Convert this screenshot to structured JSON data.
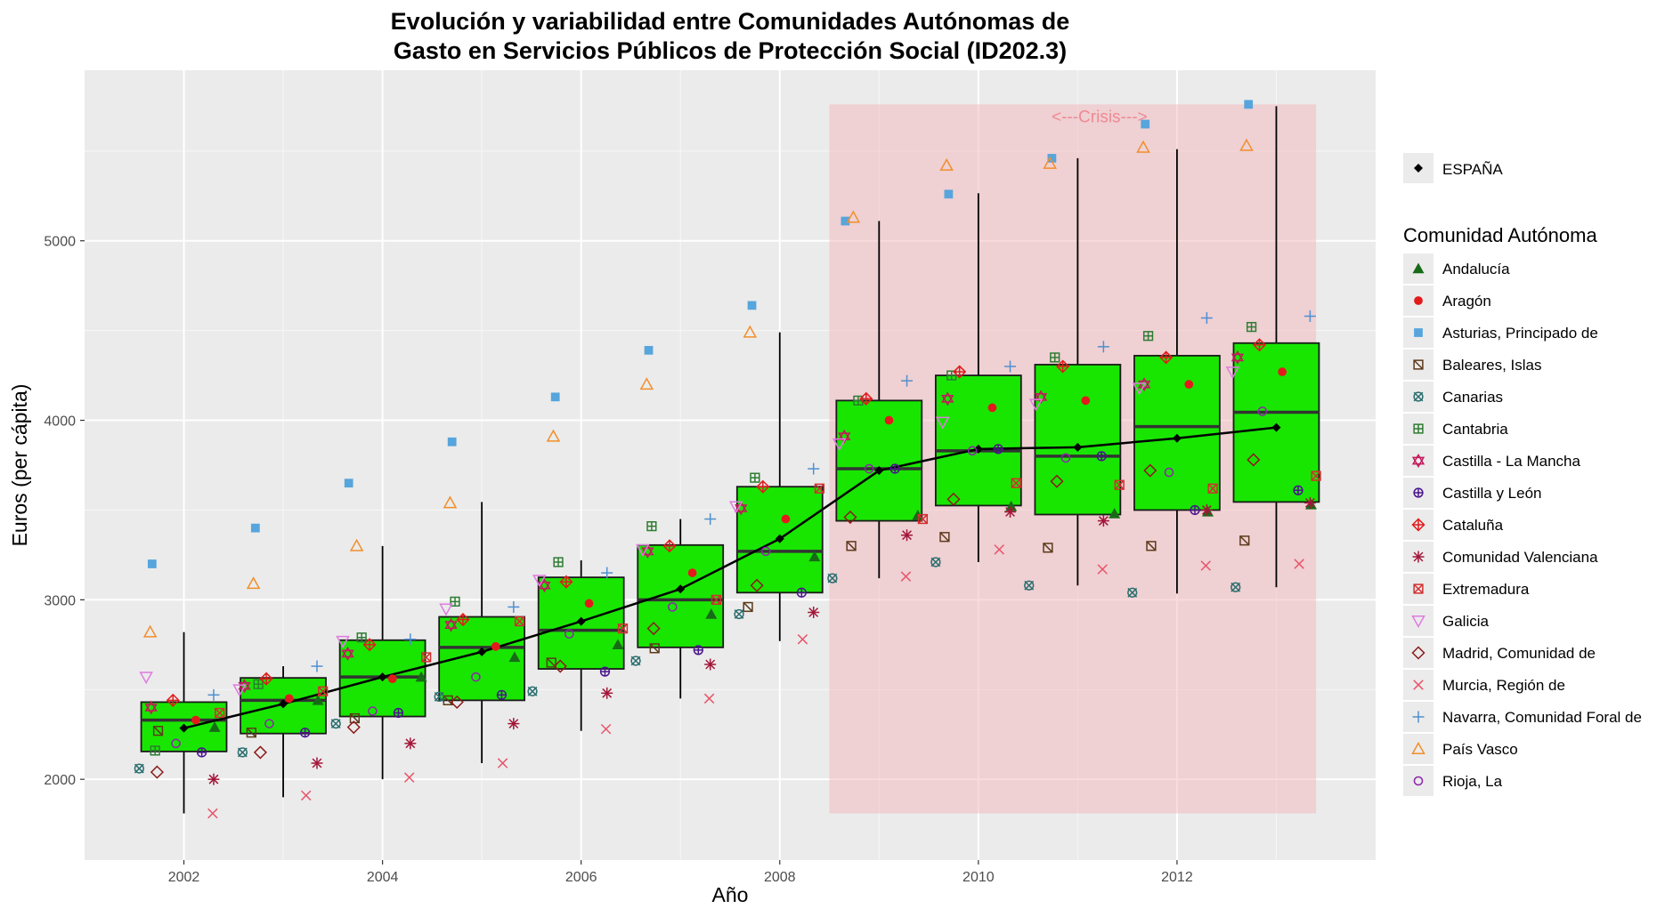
{
  "chart_data": {
    "type": "box",
    "title_lines": [
      "Evolución y variabilidad entre Comunidades Autónomas de",
      "Gasto en Servicios Públicos de Protección Social (ID202.3)"
    ],
    "xlabel": "Año",
    "ylabel": "Euros (per cápita)",
    "xlim": [
      2001,
      2014
    ],
    "ylim": [
      1550,
      5950
    ],
    "x_ticks": [
      2002,
      2004,
      2006,
      2008,
      2010,
      2012
    ],
    "y_ticks": [
      2000,
      3000,
      4000,
      5000
    ],
    "grid": true,
    "crisis_region": {
      "x_range": [
        2008.5,
        2013.4
      ],
      "y_range": [
        1810,
        5760
      ],
      "color": "#f4b6bc",
      "label": "<---Crisis--->"
    },
    "years": [
      2002,
      2003,
      2004,
      2005,
      2006,
      2007,
      2008,
      2009,
      2010,
      2011,
      2012,
      2013
    ],
    "boxes": [
      {
        "year": 2002,
        "whisker_low": 1810,
        "q1": 2155,
        "median": 2330,
        "q3": 2430,
        "whisker_high": 2820
      },
      {
        "year": 2003,
        "whisker_low": 1900,
        "q1": 2255,
        "median": 2440,
        "q3": 2565,
        "whisker_high": 2630
      },
      {
        "year": 2004,
        "whisker_low": 2000,
        "q1": 2350,
        "median": 2570,
        "q3": 2775,
        "whisker_high": 3300
      },
      {
        "year": 2005,
        "whisker_low": 2090,
        "q1": 2440,
        "median": 2735,
        "q3": 2905,
        "whisker_high": 3545
      },
      {
        "year": 2006,
        "whisker_low": 2270,
        "q1": 2615,
        "median": 2830,
        "q3": 3125,
        "whisker_high": 3220
      },
      {
        "year": 2007,
        "whisker_low": 2450,
        "q1": 2735,
        "median": 3000,
        "q3": 3305,
        "whisker_high": 3450
      },
      {
        "year": 2008,
        "whisker_low": 2770,
        "q1": 3040,
        "median": 3270,
        "q3": 3630,
        "whisker_high": 4490
      },
      {
        "year": 2009,
        "whisker_low": 3120,
        "q1": 3440,
        "median": 3730,
        "q3": 4110,
        "whisker_high": 5110
      },
      {
        "year": 2010,
        "whisker_low": 3210,
        "q1": 3525,
        "median": 3830,
        "q3": 4250,
        "whisker_high": 5265
      },
      {
        "year": 2011,
        "whisker_low": 3080,
        "q1": 3475,
        "median": 3800,
        "q3": 4310,
        "whisker_high": 5460
      },
      {
        "year": 2012,
        "whisker_low": 3035,
        "q1": 3500,
        "median": 3965,
        "q3": 4360,
        "whisker_high": 5510
      },
      {
        "year": 2013,
        "whisker_low": 3070,
        "q1": 3545,
        "median": 4045,
        "q3": 4430,
        "whisker_high": 5750
      }
    ],
    "espana": {
      "name": "ESPAÑA",
      "values": [
        2285,
        2420,
        2570,
        2710,
        2880,
        3060,
        3340,
        3720,
        3840,
        3850,
        3900,
        3960
      ]
    },
    "legend_title": "Comunidad Autónoma",
    "series": [
      {
        "name": "Andalucía",
        "symbol": "triangle-filled",
        "color": "#176b17",
        "offset": 0.35,
        "values": [
          2290,
          2440,
          2570,
          2680,
          2750,
          2920,
          3240,
          3470,
          3520,
          3480,
          3490,
          3530
        ]
      },
      {
        "name": "Aragón",
        "symbol": "circle-filled",
        "color": "#e31a1c",
        "offset": 0.1,
        "values": [
          2330,
          2450,
          2560,
          2740,
          2980,
          3150,
          3450,
          4000,
          4070,
          4110,
          4200,
          4270
        ]
      },
      {
        "name": "Asturias, Principado de",
        "symbol": "square-filled",
        "color": "#56a5dc",
        "offset": -0.3,
        "values": [
          3200,
          3400,
          3650,
          3880,
          4130,
          4390,
          4640,
          5110,
          5260,
          5460,
          5650,
          5760
        ]
      },
      {
        "name": "Baleares, Islas",
        "symbol": "square-x",
        "color": "#5c3a1a",
        "offset": -0.3,
        "values": [
          2270,
          2260,
          2340,
          2440,
          2650,
          2730,
          2960,
          3300,
          3350,
          3290,
          3300,
          3330
        ]
      },
      {
        "name": "Canarias",
        "symbol": "circle-x",
        "color": "#2a6e6e",
        "offset": -0.45,
        "values": [
          2060,
          2150,
          2310,
          2460,
          2490,
          2660,
          2920,
          3120,
          3210,
          3080,
          3040,
          3070
        ]
      },
      {
        "name": "Cantabria",
        "symbol": "square-plus",
        "color": "#2e7d32",
        "offset": -0.25,
        "values": [
          2160,
          2530,
          2790,
          2990,
          3210,
          3410,
          3680,
          4110,
          4250,
          4350,
          4470,
          4520
        ]
      },
      {
        "name": "Castilla - La Mancha",
        "symbol": "star-david",
        "color": "#c2185b",
        "offset": -0.35,
        "values": [
          2400,
          2520,
          2700,
          2860,
          3080,
          3270,
          3510,
          3910,
          4120,
          4130,
          4200,
          4350
        ]
      },
      {
        "name": "Castilla y León",
        "symbol": "circle-plus",
        "color": "#4a148c",
        "offset": 0.2,
        "values": [
          2150,
          2260,
          2370,
          2470,
          2600,
          2720,
          3040,
          3730,
          3840,
          3800,
          3500,
          3610
        ]
      },
      {
        "name": "Cataluña",
        "symbol": "diamond-plus",
        "color": "#e31a1c",
        "offset": -0.15,
        "values": [
          2440,
          2560,
          2750,
          2890,
          3100,
          3300,
          3630,
          4120,
          4270,
          4300,
          4350,
          4420
        ]
      },
      {
        "name": "Comunidad Valenciana",
        "symbol": "asterisk",
        "color": "#a31538",
        "offset": 0.3,
        "values": [
          2000,
          2090,
          2200,
          2310,
          2480,
          2640,
          2930,
          3360,
          3490,
          3440,
          3500,
          3540
        ]
      },
      {
        "name": "Extremadura",
        "symbol": "square-xx",
        "color": "#d32f2f",
        "offset": 0.4,
        "values": [
          2370,
          2490,
          2680,
          2880,
          2840,
          3000,
          3620,
          3450,
          3650,
          3640,
          3620,
          3690
        ]
      },
      {
        "name": "Galicia",
        "symbol": "triangle-down",
        "color": "#e07be0",
        "offset": -0.4,
        "values": [
          2570,
          2500,
          2770,
          2950,
          3110,
          3280,
          3520,
          3870,
          3990,
          4090,
          4180,
          4270
        ]
      },
      {
        "name": "Madrid, Comunidad de",
        "symbol": "diamond-open",
        "color": "#8b1a1a",
        "offset": -0.25,
        "values": [
          2040,
          2150,
          2290,
          2430,
          2630,
          2840,
          3080,
          3460,
          3560,
          3660,
          3720,
          3780
        ]
      },
      {
        "name": "Murcia, Región de",
        "symbol": "cross",
        "color": "#e8556b",
        "offset": 0.25,
        "values": [
          1810,
          1910,
          2010,
          2090,
          2280,
          2450,
          2780,
          3130,
          3280,
          3170,
          3190,
          3200
        ]
      },
      {
        "name": "Navarra, Comunidad Foral de",
        "symbol": "plus",
        "color": "#4f90d0",
        "offset": 0.3,
        "values": [
          2470,
          2630,
          2780,
          2960,
          3150,
          3450,
          3730,
          4220,
          4300,
          4410,
          4570,
          4580
        ]
      },
      {
        "name": "País Vasco",
        "symbol": "triangle-open",
        "color": "#f28e2b",
        "offset": -0.3,
        "values": [
          2820,
          3090,
          3300,
          3540,
          3910,
          4200,
          4490,
          5130,
          5420,
          5430,
          5520,
          5530
        ]
      },
      {
        "name": "Rioja, La",
        "symbol": "circle-open",
        "color": "#8e24aa",
        "offset": -0.1,
        "values": [
          2200,
          2310,
          2380,
          2570,
          2810,
          2960,
          3270,
          3730,
          3830,
          3790,
          3710,
          4050
        ]
      }
    ]
  }
}
